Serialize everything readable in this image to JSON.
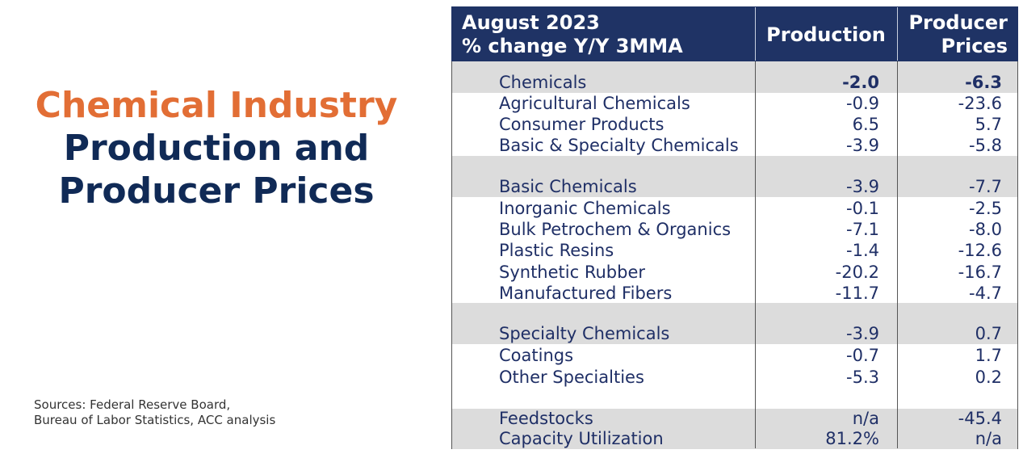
{
  "title": {
    "line1": "Chemical Industry",
    "line2": "Production and",
    "line3": "Producer Prices"
  },
  "sources": {
    "line1": "Sources:  Federal Reserve Board,",
    "line2": "Bureau of Labor Statistics, ACC analysis"
  },
  "table": {
    "header": {
      "period": "August 2023",
      "measure": "% change Y/Y 3MMA",
      "col_production": "Production",
      "col_producer_line1": "Producer",
      "col_producer_line2": "Prices"
    },
    "rows": [
      {
        "label": "Chemicals",
        "production": "-2.0",
        "producer_prices": "-6.3"
      },
      {
        "label": "Agricultural Chemicals",
        "production": "-0.9",
        "producer_prices": "-23.6"
      },
      {
        "label": "Consumer Products",
        "production": "6.5",
        "producer_prices": "5.7"
      },
      {
        "label": "Basic & Specialty Chemicals",
        "production": "-3.9",
        "producer_prices": "-5.8"
      },
      {
        "label": "Basic Chemicals",
        "production": "-3.9",
        "producer_prices": "-7.7"
      },
      {
        "label": "Inorganic Chemicals",
        "production": "-0.1",
        "producer_prices": "-2.5"
      },
      {
        "label": "Bulk Petrochem & Organics",
        "production": "-7.1",
        "producer_prices": "-8.0"
      },
      {
        "label": "Plastic Resins",
        "production": "-1.4",
        "producer_prices": "-12.6"
      },
      {
        "label": "Synthetic Rubber",
        "production": "-20.2",
        "producer_prices": "-16.7"
      },
      {
        "label": "Manufactured Fibers",
        "production": "-11.7",
        "producer_prices": "-4.7"
      },
      {
        "label": "Specialty Chemicals",
        "production": "-3.9",
        "producer_prices": "0.7"
      },
      {
        "label": "Coatings",
        "production": "-0.7",
        "producer_prices": "1.7"
      },
      {
        "label": "Other Specialties",
        "production": "-5.3",
        "producer_prices": "0.2"
      },
      {
        "label": "Feedstocks",
        "production": "n/a",
        "producer_prices": "-45.4"
      },
      {
        "label": "Capacity Utilization",
        "production": "81.2%",
        "producer_prices": "n/a"
      }
    ]
  },
  "colors": {
    "title_orange": "#e26e35",
    "title_navy": "#102a56",
    "header_bg": "#1f3365",
    "row_text": "#1f2f66",
    "band_gray": "#dcdcdc"
  }
}
